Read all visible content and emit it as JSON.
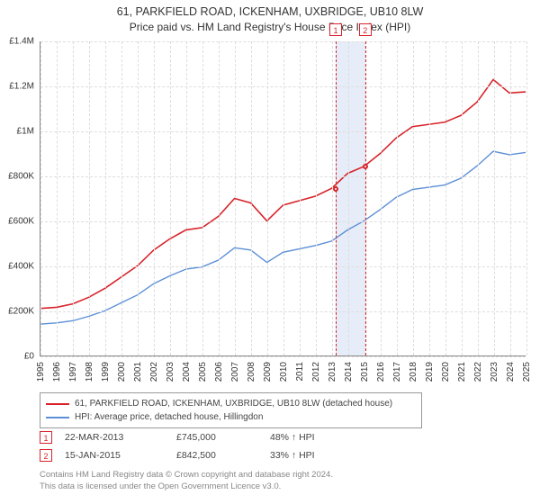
{
  "title": "61, PARKFIELD ROAD, ICKENHAM, UXBRIDGE, UB10 8LW",
  "subtitle": "Price paid vs. HM Land Registry's House Price Index (HPI)",
  "chart": {
    "type": "line",
    "x_years": [
      1995,
      1996,
      1997,
      1998,
      1999,
      2000,
      2001,
      2002,
      2003,
      2004,
      2005,
      2006,
      2007,
      2008,
      2009,
      2010,
      2011,
      2012,
      2013,
      2014,
      2015,
      2016,
      2017,
      2018,
      2019,
      2020,
      2021,
      2022,
      2023,
      2024,
      2025
    ],
    "ylim": [
      0,
      1400000
    ],
    "ytick_step": 200000,
    "ytick_labels": [
      "£0",
      "£200K",
      "£400K",
      "£600K",
      "£800K",
      "£1M",
      "£1.2M",
      "£1.4M"
    ],
    "background_color": "#ffffff",
    "grid_color": "#dddddd",
    "axis_color": "#888888",
    "title_fontsize": 12.5,
    "label_fontsize": 10,
    "series": [
      {
        "name": "property_price",
        "label": "61, PARKFIELD ROAD, ICKENHAM, UXBRIDGE, UB10 8LW (detached house)",
        "color": "#d8232a",
        "line_width": 1.6,
        "values_by_year": {
          "1995": 210000,
          "1996": 215000,
          "1997": 230000,
          "1998": 260000,
          "1999": 300000,
          "2000": 350000,
          "2001": 400000,
          "2002": 470000,
          "2003": 520000,
          "2004": 560000,
          "2005": 570000,
          "2006": 620000,
          "2007": 700000,
          "2008": 680000,
          "2009": 600000,
          "2010": 670000,
          "2011": 690000,
          "2012": 710000,
          "2013": 745000,
          "2014": 812000,
          "2015": 842500,
          "2016": 900000,
          "2017": 970000,
          "2018": 1020000,
          "2019": 1030000,
          "2020": 1040000,
          "2021": 1070000,
          "2022": 1130000,
          "2023": 1230000,
          "2024": 1170000,
          "2025": 1175000
        }
      },
      {
        "name": "hpi",
        "label": "HPI: Average price, detached house, Hillingdon",
        "color": "#5b8fd6",
        "line_width": 1.4,
        "values_by_year": {
          "1995": 140000,
          "1996": 145000,
          "1997": 155000,
          "1998": 175000,
          "1999": 200000,
          "2000": 235000,
          "2001": 270000,
          "2002": 320000,
          "2003": 355000,
          "2004": 385000,
          "2005": 395000,
          "2006": 425000,
          "2007": 480000,
          "2008": 470000,
          "2009": 415000,
          "2010": 460000,
          "2011": 475000,
          "2012": 490000,
          "2013": 510000,
          "2014": 560000,
          "2015": 600000,
          "2016": 650000,
          "2017": 705000,
          "2018": 740000,
          "2019": 750000,
          "2020": 760000,
          "2021": 790000,
          "2022": 845000,
          "2023": 910000,
          "2024": 895000,
          "2025": 905000
        }
      }
    ],
    "highlight_band": {
      "start_year": 2013.22,
      "end_year": 2015.04,
      "color": "rgba(200,216,240,0.45)"
    },
    "markers": [
      {
        "n": "1",
        "year": 2013.22,
        "price": 745000
      },
      {
        "n": "2",
        "year": 2015.04,
        "price": 842500
      }
    ]
  },
  "legend": {
    "series1": "61, PARKFIELD ROAD, ICKENHAM, UXBRIDGE, UB10 8LW (detached house)",
    "series2": "HPI: Average price, detached house, Hillingdon"
  },
  "sales": [
    {
      "n": "1",
      "date": "22-MAR-2013",
      "price": "£745,000",
      "pct": "48% ↑ HPI"
    },
    {
      "n": "2",
      "date": "15-JAN-2015",
      "price": "£842,500",
      "pct": "33% ↑ HPI"
    }
  ],
  "attribution": {
    "line1": "Contains HM Land Registry data © Crown copyright and database right 2024.",
    "line2": "This data is licensed under the Open Government Licence v3.0."
  }
}
